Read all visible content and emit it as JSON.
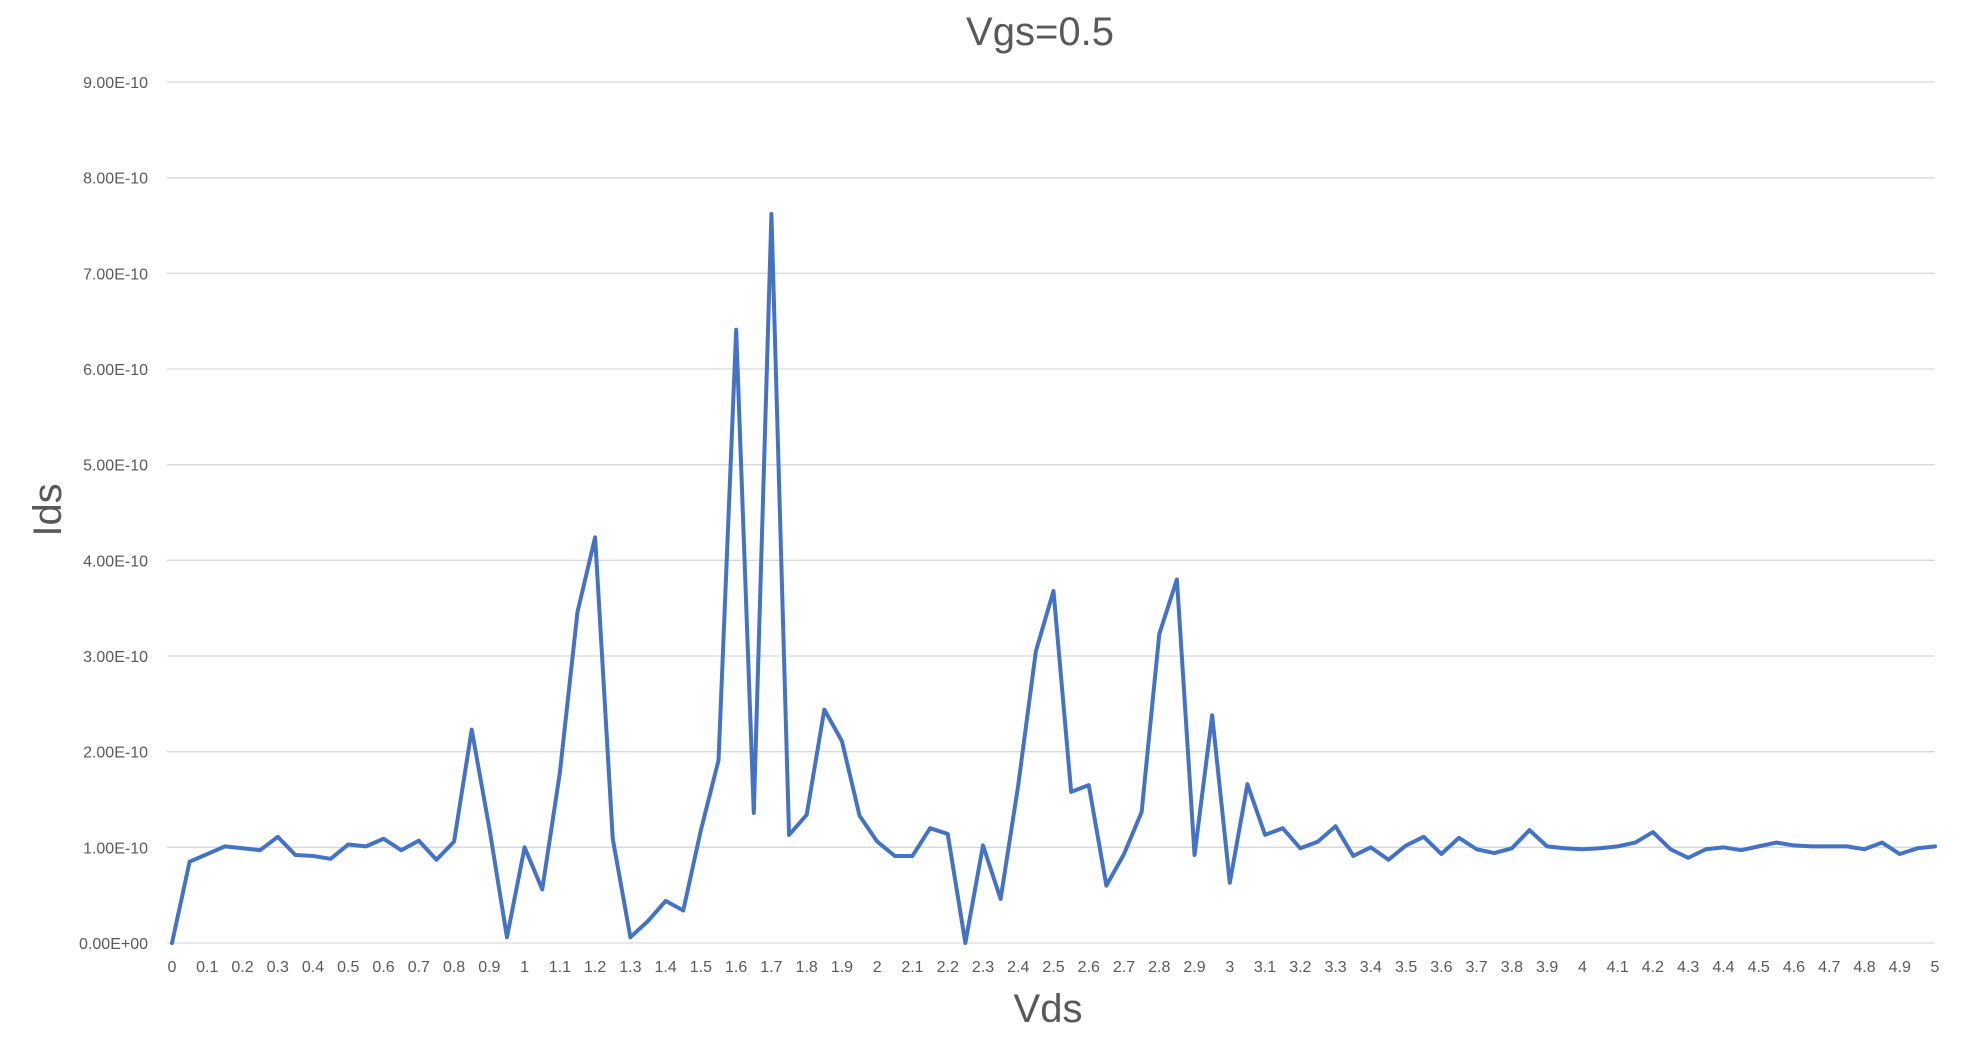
{
  "chart_data": {
    "type": "line",
    "title": "Vgs=0.5",
    "xlabel": "Vds",
    "ylabel": "Ids",
    "ylim": [
      0,
      9e-10
    ],
    "grid": true,
    "legend": "none",
    "colors": {
      "series": "#4472c4",
      "grid": "#d9d9d9",
      "text": "#595959"
    },
    "y_ticks": [
      "0.00E+00",
      "1.00E-10",
      "2.00E-10",
      "3.00E-10",
      "4.00E-10",
      "5.00E-10",
      "6.00E-10",
      "7.00E-10",
      "8.00E-10",
      "9.00E-10"
    ],
    "x_tick_labels": [
      "0",
      "0.1",
      "0.2",
      "0.3",
      "0.4",
      "0.5",
      "0.6",
      "0.7",
      "0.8",
      "0.9",
      "1",
      "1.1",
      "1.2",
      "1.3",
      "1.4",
      "1.5",
      "1.6",
      "1.7",
      "1.8",
      "1.9",
      "2",
      "2.1",
      "2.2",
      "2.3",
      "2.4",
      "2.5",
      "2.6",
      "2.7",
      "2.8",
      "2.9",
      "3",
      "3.1",
      "3.2",
      "3.3",
      "3.4",
      "3.5",
      "3.6",
      "3.7",
      "3.8",
      "3.9",
      "4",
      "4.1",
      "4.2",
      "4.3",
      "4.4",
      "4.5",
      "4.6",
      "4.7",
      "4.8",
      "4.9",
      "5"
    ],
    "x": [
      0,
      0.05,
      0.1,
      0.15,
      0.2,
      0.25,
      0.3,
      0.35,
      0.4,
      0.45,
      0.5,
      0.55,
      0.6,
      0.65,
      0.7,
      0.75,
      0.8,
      0.85,
      0.9,
      0.95,
      1,
      1.05,
      1.1,
      1.15,
      1.2,
      1.25,
      1.3,
      1.35,
      1.4,
      1.45,
      1.5,
      1.55,
      1.6,
      1.65,
      1.7,
      1.75,
      1.8,
      1.85,
      1.9,
      1.95,
      2,
      2.05,
      2.1,
      2.15,
      2.2,
      2.25,
      2.3,
      2.35,
      2.4,
      2.45,
      2.5,
      2.55,
      2.6,
      2.65,
      2.7,
      2.75,
      2.8,
      2.85,
      2.9,
      2.95,
      3,
      3.05,
      3.1,
      3.15,
      3.2,
      3.25,
      3.3,
      3.35,
      3.4,
      3.45,
      3.5,
      3.55,
      3.6,
      3.65,
      3.7,
      3.75,
      3.8,
      3.85,
      3.9,
      3.95,
      4,
      4.05,
      4.1,
      4.15,
      4.2,
      4.25,
      4.3,
      4.35,
      4.4,
      4.45,
      4.5,
      4.55,
      4.6,
      4.65,
      4.7,
      4.75,
      4.8,
      4.85,
      4.9,
      4.95,
      5
    ],
    "series": [
      {
        "values": [
          0,
          8.5e-11,
          9.3e-11,
          1.01e-10,
          9.9e-11,
          9.7e-11,
          1.11e-10,
          9.2e-11,
          9.1e-11,
          8.8e-11,
          1.03e-10,
          1.01e-10,
          1.09e-10,
          9.7e-11,
          1.07e-10,
          8.7e-11,
          1.06e-10,
          2.23e-10,
          1.2e-10,
          6e-12,
          1e-10,
          5.6e-11,
          1.78e-10,
          3.46e-10,
          4.24e-10,
          1.09e-10,
          6e-12,
          2.3e-11,
          4.4e-11,
          3.4e-11,
          1.18e-10,
          1.91e-10,
          6.41e-10,
          1.36e-10,
          7.62e-10,
          1.13e-10,
          1.34e-10,
          2.44e-10,
          2.11e-10,
          1.33e-10,
          1.06e-10,
          9.1e-11,
          9.1e-11,
          1.2e-10,
          1.14e-10,
          0,
          1.02e-10,
          4.6e-11,
          1.65e-10,
          3.05e-10,
          3.68e-10,
          1.58e-10,
          1.65e-10,
          6e-11,
          9.3e-11,
          1.37e-10,
          3.23e-10,
          3.8e-10,
          9.2e-11,
          2.38e-10,
          6.3e-11,
          1.66e-10,
          1.13e-10,
          1.2e-10,
          9.9e-11,
          1.06e-10,
          1.22e-10,
          9.1e-11,
          1e-10,
          8.7e-11,
          1.02e-10,
          1.11e-10,
          9.3e-11,
          1.1e-10,
          9.8e-11,
          9.4e-11,
          9.9e-11,
          1.18e-10,
          1.01e-10,
          9.9e-11,
          9.8e-11,
          9.9e-11,
          1.01e-10,
          1.05e-10,
          1.16e-10,
          9.8e-11,
          8.9e-11,
          9.8e-11,
          1e-10,
          9.7e-11,
          1.01e-10,
          1.05e-10,
          1.02e-10,
          1.01e-10,
          1.01e-10,
          1.01e-10,
          9.8e-11,
          1.05e-10,
          9.3e-11,
          9.9e-11,
          1.01e-10
        ]
      }
    ]
  }
}
